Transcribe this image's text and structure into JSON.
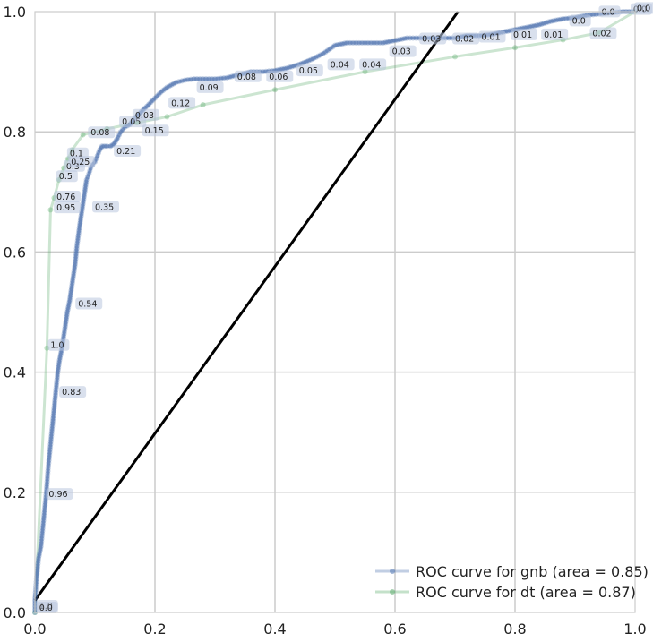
{
  "chart_data": {
    "type": "line",
    "title": "",
    "xlabel": "",
    "ylabel": "",
    "xlim": [
      0.0,
      1.0
    ],
    "ylim": [
      0.0,
      1.0
    ],
    "grid": true,
    "legend_position": "bottom-right",
    "x_ticks": [
      "0.0",
      "0.2",
      "0.4",
      "0.6",
      "0.8",
      "1.0"
    ],
    "y_ticks": [
      "0.0",
      "0.2",
      "0.4",
      "0.6",
      "0.8",
      "1.0"
    ],
    "colors": {
      "gnb": "#4c72b0",
      "dt": "#55a868",
      "reference": "#000000"
    },
    "series": [
      {
        "name": "ROC curve for gnb (area = 0.85)",
        "x": [
          0.0,
          0.0,
          0.003,
          0.006,
          0.01,
          0.013,
          0.016,
          0.019,
          0.022,
          0.026,
          0.029,
          0.032,
          0.035,
          0.038,
          0.041,
          0.045,
          0.048,
          0.051,
          0.054,
          0.058,
          0.061,
          0.064,
          0.067,
          0.07,
          0.074,
          0.077,
          0.08,
          0.083,
          0.086,
          0.09,
          0.093,
          0.096,
          0.1,
          0.104,
          0.108,
          0.112,
          0.116,
          0.12,
          0.126,
          0.132,
          0.138,
          0.143,
          0.15,
          0.158,
          0.166,
          0.174,
          0.18,
          0.19,
          0.2,
          0.21,
          0.22,
          0.235,
          0.25,
          0.265,
          0.28,
          0.3,
          0.32,
          0.34,
          0.36,
          0.38,
          0.4,
          0.42,
          0.44,
          0.46,
          0.48,
          0.5,
          0.52,
          0.54,
          0.56,
          0.58,
          0.6,
          0.62,
          0.64,
          0.66,
          0.68,
          0.7,
          0.72,
          0.74,
          0.76,
          0.78,
          0.8,
          0.82,
          0.84,
          0.86,
          0.88,
          0.9,
          0.92,
          0.94,
          0.96,
          0.98,
          1.0
        ],
        "y": [
          0.0,
          0.02,
          0.06,
          0.09,
          0.11,
          0.14,
          0.17,
          0.2,
          0.24,
          0.28,
          0.31,
          0.34,
          0.37,
          0.4,
          0.42,
          0.44,
          0.46,
          0.48,
          0.5,
          0.52,
          0.54,
          0.56,
          0.58,
          0.61,
          0.64,
          0.66,
          0.68,
          0.7,
          0.72,
          0.73,
          0.74,
          0.745,
          0.75,
          0.76,
          0.77,
          0.776,
          0.776,
          0.776,
          0.776,
          0.78,
          0.79,
          0.8,
          0.808,
          0.812,
          0.822,
          0.83,
          0.836,
          0.846,
          0.856,
          0.866,
          0.874,
          0.882,
          0.886,
          0.888,
          0.888,
          0.888,
          0.89,
          0.895,
          0.9,
          0.9,
          0.902,
          0.906,
          0.912,
          0.92,
          0.93,
          0.944,
          0.948,
          0.948,
          0.948,
          0.948,
          0.952,
          0.956,
          0.956,
          0.956,
          0.956,
          0.956,
          0.96,
          0.96,
          0.962,
          0.966,
          0.97,
          0.974,
          0.978,
          0.984,
          0.988,
          0.99,
          0.994,
          0.996,
          0.998,
          1.0,
          1.0
        ]
      },
      {
        "name": "ROC curve for dt (area = 0.87)",
        "x": [
          0.0,
          0.02,
          0.026,
          0.032,
          0.04,
          0.048,
          0.055,
          0.062,
          0.08,
          0.12,
          0.17,
          0.22,
          0.28,
          0.4,
          0.55,
          0.7,
          0.8,
          0.88,
          0.94,
          1.0
        ],
        "y": [
          0.0,
          0.44,
          0.67,
          0.69,
          0.72,
          0.74,
          0.755,
          0.77,
          0.795,
          0.805,
          0.815,
          0.825,
          0.845,
          0.87,
          0.9,
          0.925,
          0.94,
          0.953,
          0.965,
          1.0
        ]
      },
      {
        "name": "",
        "x": [
          0.0,
          0.705
        ],
        "y": [
          0.02,
          1.0
        ]
      }
    ],
    "annotations": [
      {
        "text": "0.96",
        "x": 0.023,
        "y": 0.195,
        "series": "gnb"
      },
      {
        "text": "0.83",
        "x": 0.045,
        "y": 0.365,
        "series": "gnb"
      },
      {
        "text": "0.54",
        "x": 0.072,
        "y": 0.512,
        "series": "gnb"
      },
      {
        "text": "0.35",
        "x": 0.1,
        "y": 0.673,
        "series": "gnb"
      },
      {
        "text": "0.21",
        "x": 0.136,
        "y": 0.766,
        "series": "gnb"
      },
      {
        "text": "0.15",
        "x": 0.183,
        "y": 0.8,
        "series": "gnb"
      },
      {
        "text": "0.05",
        "x": 0.145,
        "y": 0.815,
        "series": "gnb"
      },
      {
        "text": "0.03",
        "x": 0.167,
        "y": 0.826,
        "series": "gnb"
      },
      {
        "text": "0.12",
        "x": 0.227,
        "y": 0.846,
        "series": "gnb"
      },
      {
        "text": "0.09",
        "x": 0.274,
        "y": 0.872,
        "series": "gnb"
      },
      {
        "text": "0.08",
        "x": 0.337,
        "y": 0.89,
        "series": "gnb"
      },
      {
        "text": "0.06",
        "x": 0.39,
        "y": 0.89,
        "series": "gnb"
      },
      {
        "text": "0.05",
        "x": 0.44,
        "y": 0.9,
        "series": "gnb"
      },
      {
        "text": "0.04",
        "x": 0.492,
        "y": 0.91,
        "series": "gnb"
      },
      {
        "text": "0.04",
        "x": 0.545,
        "y": 0.91,
        "series": "gnb"
      },
      {
        "text": "0.03",
        "x": 0.595,
        "y": 0.932,
        "series": "gnb"
      },
      {
        "text": "0.03",
        "x": 0.645,
        "y": 0.953,
        "series": "gnb"
      },
      {
        "text": "0.02",
        "x": 0.7,
        "y": 0.953,
        "series": "gnb"
      },
      {
        "text": "0.01",
        "x": 0.744,
        "y": 0.956,
        "series": "gnb"
      },
      {
        "text": "0.01",
        "x": 0.797,
        "y": 0.96,
        "series": "gnb"
      },
      {
        "text": "0.01",
        "x": 0.848,
        "y": 0.96,
        "series": "gnb"
      },
      {
        "text": "0.0",
        "x": 0.895,
        "y": 0.983,
        "series": "gnb"
      },
      {
        "text": "0.0",
        "x": 0.944,
        "y": 0.998,
        "series": "gnb"
      },
      {
        "text": "0.0",
        "x": 0.997,
        "y": 1.002,
        "series": "gnb"
      },
      {
        "text": "0.0",
        "x": 1.003,
        "y": 1.004,
        "series": "gnb"
      },
      {
        "text": "1.0",
        "x": 0.007,
        "y": 0.009,
        "series": "gnb"
      },
      {
        "text": "1.0",
        "x": 0.026,
        "y": 0.443,
        "series": "dt"
      },
      {
        "text": "0.95",
        "x": 0.036,
        "y": 0.672,
        "series": "dt"
      },
      {
        "text": "0.76",
        "x": 0.036,
        "y": 0.69,
        "series": "dt"
      },
      {
        "text": "0.5",
        "x": 0.04,
        "y": 0.724,
        "series": "dt"
      },
      {
        "text": "0.3",
        "x": 0.052,
        "y": 0.741,
        "series": "dt"
      },
      {
        "text": "0.25",
        "x": 0.06,
        "y": 0.748,
        "series": "dt"
      },
      {
        "text": "0.1",
        "x": 0.058,
        "y": 0.762,
        "series": "dt"
      },
      {
        "text": "0.08",
        "x": 0.093,
        "y": 0.797,
        "series": "dt"
      },
      {
        "text": "0.02",
        "x": 0.929,
        "y": 0.962,
        "series": "dt"
      },
      {
        "text": "0.0",
        "x": 0.007,
        "y": 0.006,
        "series": "dt"
      }
    ]
  }
}
